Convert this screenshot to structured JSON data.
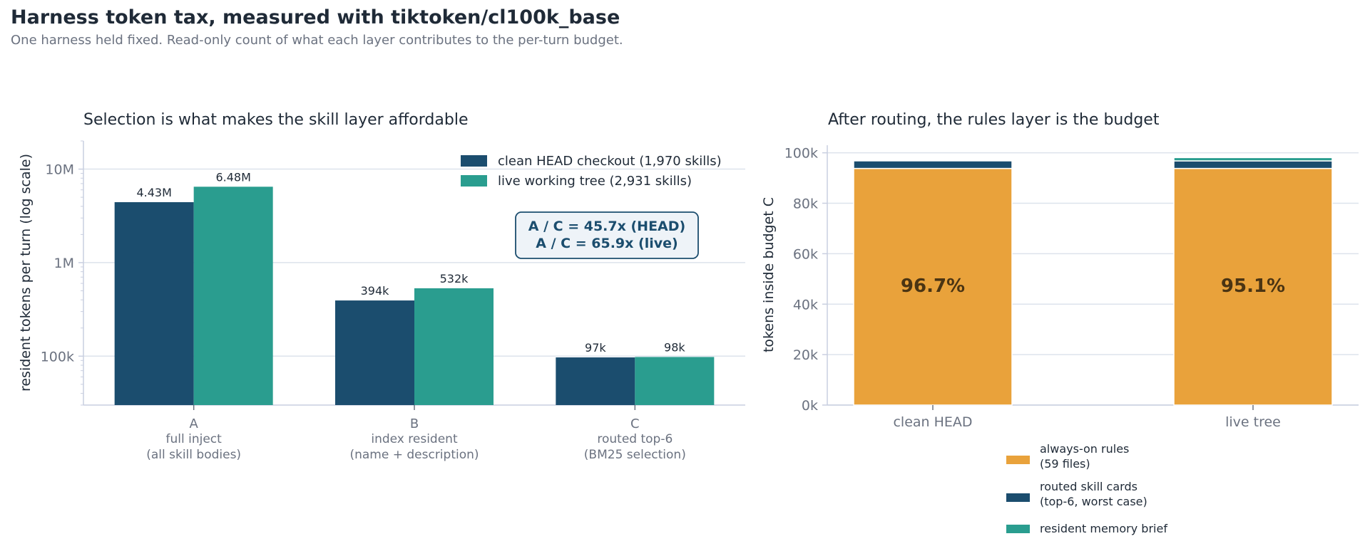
{
  "title": "Harness token tax, measured with tiktoken/cl100k_base",
  "subtitle": "One harness held fixed. Read-only count of what each layer contributes to the per-turn budget.",
  "colors": {
    "head": "#1b4d6e",
    "live": "#2a9d8f",
    "rules": "#e9a23b",
    "skills": "#1b4d6e",
    "memory": "#2a9d8f",
    "grid": "#dde3ec",
    "axis": "#c9cfe0"
  },
  "chart_data": [
    {
      "type": "bar",
      "title": "Selection is what makes the skill layer affordable",
      "ylabel": "resident tokens per turn (log scale)",
      "yscale": "log",
      "ylim": [
        30000,
        20000000
      ],
      "yticks": [
        {
          "value": 100000,
          "label": "100k"
        },
        {
          "value": 1000000,
          "label": "1M"
        },
        {
          "value": 10000000,
          "label": "10M"
        }
      ],
      "grid": true,
      "legend_position": "top-right",
      "categories": [
        {
          "code": "A",
          "line1": "full inject",
          "line2": "(all skill bodies)"
        },
        {
          "code": "B",
          "line1": "index resident",
          "line2": "(name + description)"
        },
        {
          "code": "C",
          "line1": "routed top-6",
          "line2": "(BM25 selection)"
        }
      ],
      "series": [
        {
          "name": "clean HEAD checkout (1,970 skills)",
          "color": "#1b4d6e",
          "values": [
            4430000,
            394000,
            97000
          ],
          "labels": [
            "4.43M",
            "394k",
            "97k"
          ]
        },
        {
          "name": "live working tree (2,931 skills)",
          "color": "#2a9d8f",
          "values": [
            6480000,
            532000,
            98000
          ],
          "labels": [
            "6.48M",
            "532k",
            "98k"
          ]
        }
      ],
      "annotation": [
        "A / C = 45.7x  (HEAD)",
        "A / C = 65.9x  (live)"
      ]
    },
    {
      "type": "bar",
      "stacked": true,
      "title": "After routing, the rules layer is the budget",
      "ylabel": "tokens inside budget C",
      "ylim": [
        0,
        103000
      ],
      "yticks": [
        {
          "value": 0,
          "label": "0k"
        },
        {
          "value": 20000,
          "label": "20k"
        },
        {
          "value": 40000,
          "label": "40k"
        },
        {
          "value": 60000,
          "label": "60k"
        },
        {
          "value": 80000,
          "label": "80k"
        },
        {
          "value": 100000,
          "label": "100k"
        }
      ],
      "grid": true,
      "legend_position": "bottom-center",
      "categories": [
        "clean HEAD",
        "live tree"
      ],
      "series": [
        {
          "name": [
            "always-on rules",
            "(59 files)"
          ],
          "color": "#e9a23b",
          "values": [
            93800,
            93800
          ]
        },
        {
          "name": [
            "routed skill cards",
            "(top-6, worst case)"
          ],
          "color": "#1b4d6e",
          "values": [
            3000,
            3000
          ]
        },
        {
          "name": [
            "resident memory brief"
          ],
          "color": "#2a9d8f",
          "values": [
            0,
            1300
          ]
        }
      ],
      "bar_labels": [
        "96.7%",
        "95.1%"
      ]
    }
  ]
}
